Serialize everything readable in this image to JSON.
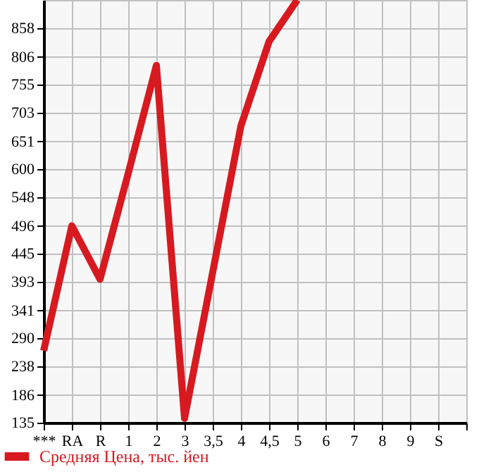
{
  "chart_data": {
    "type": "line",
    "categories": [
      "***",
      "RA",
      "R",
      "1",
      "2",
      "3",
      "3,5",
      "4",
      "4,5",
      "5",
      "6",
      "7",
      "8",
      "9",
      "S",
      null
    ],
    "series": [
      {
        "name": "Средняя Цена, тыс. йен",
        "color": "#d71920",
        "values": [
          267,
          496,
          398,
          592,
          790,
          143,
          411,
          679,
          834,
          910,
          null,
          null,
          null,
          null,
          null,
          null
        ]
      }
    ],
    "ylim": [
      135,
      910
    ],
    "yticks": [
      135,
      186,
      238,
      290,
      341,
      393,
      445,
      496,
      548,
      600,
      651,
      703,
      755,
      806,
      858
    ],
    "grid": true,
    "legend": "bottom",
    "marker": "none",
    "line_style": "solid"
  }
}
